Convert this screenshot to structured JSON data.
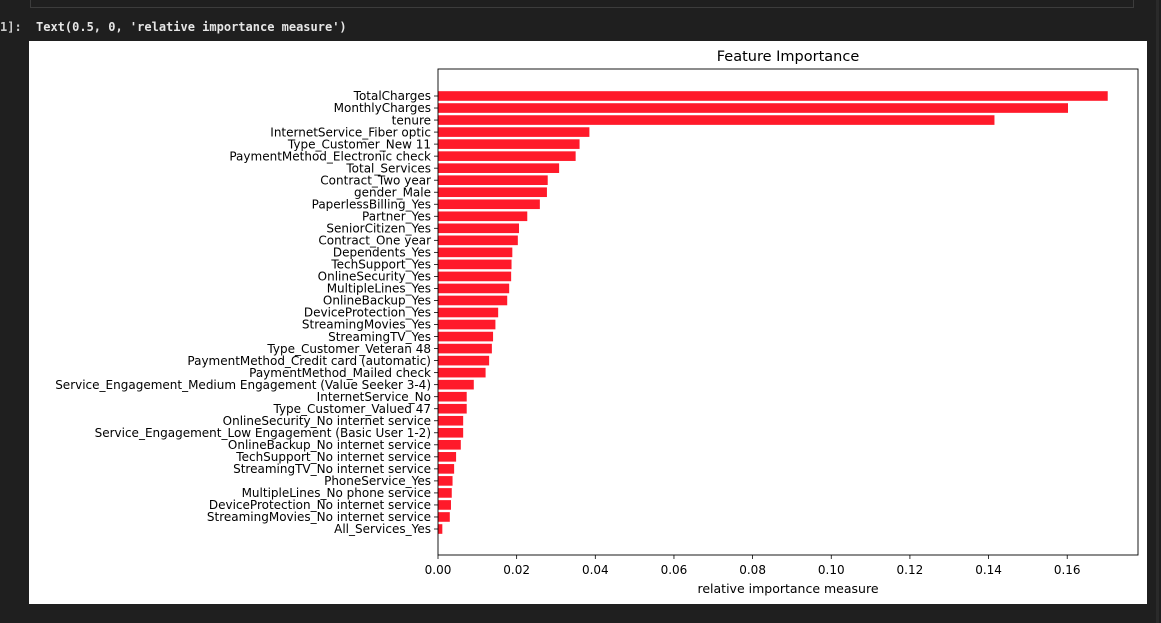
{
  "prompt_label": "1]:",
  "output_text": "Text(0.5, 0, 'relative importance measure')",
  "chart_data": {
    "type": "bar",
    "orientation": "horizontal",
    "title": "Feature Importance",
    "xlabel": "relative importance measure",
    "ylabel": "",
    "xlim": [
      0,
      0.178
    ],
    "xticks": [
      "0.00",
      "0.02",
      "0.04",
      "0.06",
      "0.08",
      "0.10",
      "0.12",
      "0.14",
      "0.16"
    ],
    "xtick_values": [
      0,
      0.02,
      0.04,
      0.06,
      0.08,
      0.1,
      0.12,
      0.14,
      0.16
    ],
    "bar_color": "#ff1a2a",
    "grid": false,
    "categories": [
      "TotalCharges",
      "MonthlyCharges",
      "tenure",
      "InternetService_Fiber optic",
      "Type_Customer_New 11",
      "PaymentMethod_Electronic check",
      "Total_Services",
      "Contract_Two year",
      "gender_Male",
      "PaperlessBilling_Yes",
      "Partner_Yes",
      "SeniorCitizen_Yes",
      "Contract_One year",
      "Dependents_Yes",
      "TechSupport_Yes",
      "OnlineSecurity_Yes",
      "MultipleLines_Yes",
      "OnlineBackup_Yes",
      "DeviceProtection_Yes",
      "StreamingMovies_Yes",
      "StreamingTV_Yes",
      "Type_Customer_Veteran 48",
      "PaymentMethod_Credit card (automatic)",
      "PaymentMethod_Mailed check",
      "Service_Engagement_Medium Engagement (Value Seeker 3-4)",
      "InternetService_No",
      "Type_Customer_Valued 47",
      "OnlineSecurity_No internet service",
      "Service_Engagement_Low Engagement (Basic User 1-2)",
      "OnlineBackup_No internet service",
      "TechSupport_No internet service",
      "StreamingTV_No internet service",
      "PhoneService_Yes",
      "MultipleLines_No phone service",
      "DeviceProtection_No internet service",
      "StreamingMovies_No internet service",
      "All_Services_Yes"
    ],
    "values": [
      0.1703,
      0.1602,
      0.1415,
      0.0385,
      0.036,
      0.035,
      0.0308,
      0.0279,
      0.0277,
      0.0259,
      0.0227,
      0.0206,
      0.0203,
      0.0189,
      0.0187,
      0.0186,
      0.0181,
      0.0176,
      0.0153,
      0.0146,
      0.014,
      0.0137,
      0.013,
      0.0121,
      0.0091,
      0.0073,
      0.0073,
      0.0064,
      0.0064,
      0.0058,
      0.0046,
      0.0041,
      0.0037,
      0.0035,
      0.0033,
      0.003,
      0.0011
    ]
  }
}
